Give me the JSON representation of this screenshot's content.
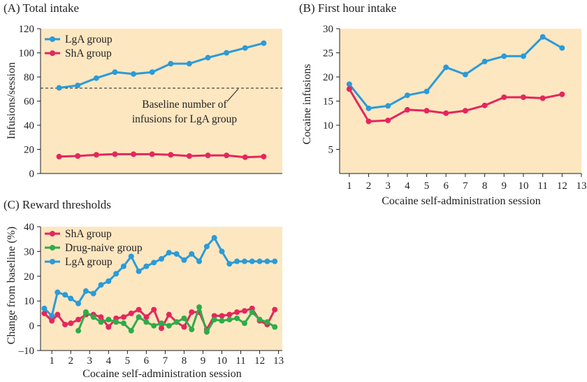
{
  "colors": {
    "panel_bg": "#fde7c1",
    "axis": "#231f20",
    "lga": "#2b9bd8",
    "sha": "#e5265c",
    "naive": "#2eac4a"
  },
  "chart_data": [
    {
      "id": "A",
      "type": "line",
      "title": "(A) Total intake",
      "xlabel": "",
      "ylabel": "Infusions/session",
      "xlim": [
        0,
        13
      ],
      "ylim": [
        0,
        120
      ],
      "yticks": [
        "0",
        "20",
        "40",
        "60",
        "80",
        "100",
        "120"
      ],
      "xticks": [],
      "legend": "top-left",
      "series": [
        {
          "name": "LgA group",
          "color_key": "lga",
          "x": [
            1,
            2,
            3,
            4,
            5,
            6,
            7,
            8,
            9,
            10,
            11,
            12
          ],
          "y": [
            71,
            73,
            79,
            84,
            82.5,
            84,
            91,
            91,
            96,
            100,
            104,
            108
          ]
        },
        {
          "name": "ShA group",
          "color_key": "sha",
          "x": [
            1,
            2,
            3,
            4,
            5,
            6,
            7,
            8,
            9,
            10,
            11,
            12
          ],
          "y": [
            14,
            14.5,
            15.5,
            16,
            16,
            16,
            15.5,
            14.5,
            15,
            15,
            13.5,
            14
          ]
        }
      ],
      "reference_line": {
        "y": 71,
        "label_line1": "Baseline number of",
        "label_line2": "infusions for LgA group"
      }
    },
    {
      "id": "B",
      "type": "line",
      "title": "(B) First hour intake",
      "xlabel": "Cocaine self-administration session",
      "ylabel": "Cocaine infusions",
      "xlim": [
        0.5,
        13
      ],
      "ylim": [
        0,
        30
      ],
      "yticks": [
        "5",
        "10",
        "15",
        "20",
        "25",
        "30"
      ],
      "xticks": [
        "1",
        "2",
        "3",
        "4",
        "5",
        "6",
        "7",
        "8",
        "9",
        "10",
        "11",
        "12",
        "13"
      ],
      "series": [
        {
          "name": "",
          "color_key": "lga",
          "x": [
            1,
            2,
            3,
            4,
            5,
            6,
            7,
            8,
            9,
            10,
            11,
            12
          ],
          "y": [
            18.5,
            13.5,
            14,
            16.2,
            17,
            22,
            20.5,
            23.2,
            24.3,
            24.3,
            28.3,
            26
          ]
        },
        {
          "name": "",
          "color_key": "sha",
          "x": [
            1,
            2,
            3,
            4,
            5,
            6,
            7,
            8,
            9,
            10,
            11,
            12
          ],
          "y": [
            17.5,
            10.8,
            11,
            13.2,
            13,
            12.5,
            13,
            14.1,
            15.8,
            15.8,
            15.6,
            16.4
          ]
        }
      ]
    },
    {
      "id": "C",
      "type": "line",
      "title": "(C) Reward thresholds",
      "xlabel": "Cocaine self-administration session",
      "ylabel": "Change from baseline (%)",
      "xlim": [
        0.4,
        13.2
      ],
      "ylim": [
        -10,
        40
      ],
      "yticks": [
        "–10",
        "0",
        "10",
        "20",
        "30",
        "40"
      ],
      "xticks": [
        "1",
        "2",
        "3",
        "4",
        "5",
        "6",
        "7",
        "8",
        "9",
        "10",
        "11",
        "12",
        "13"
      ],
      "legend": "top-left",
      "series": [
        {
          "name": "ShA group",
          "color_key": "sha",
          "x": [
            0.6,
            1,
            1.3,
            1.7,
            2,
            2.4,
            2.8,
            3.2,
            3.6,
            4,
            4.4,
            4.8,
            5.2,
            5.6,
            6,
            6.4,
            6.8,
            7.2,
            7.6,
            8,
            8.4,
            8.8,
            9.2,
            9.6,
            10,
            10.4,
            10.8,
            11.2,
            11.6,
            12,
            12.4,
            12.8
          ],
          "y": [
            5,
            2,
            4.5,
            0.5,
            1,
            2.5,
            4.5,
            4.5,
            3.5,
            -0.5,
            3,
            3.5,
            5,
            6.5,
            3.5,
            6.5,
            -1,
            4.5,
            1.5,
            -0.5,
            5.5,
            5.5,
            -1.5,
            4,
            4,
            4.5,
            5.5,
            6,
            7,
            2,
            0.5,
            6.5
          ]
        },
        {
          "name": "Drug-naive group",
          "color_key": "naive",
          "x": [
            2.4,
            2.8,
            3.2,
            3.6,
            4,
            4.4,
            4.8,
            5.2,
            5.6,
            6,
            6.4,
            6.8,
            7.2,
            7.6,
            8,
            8.4,
            8.8,
            9.2,
            9.6,
            10,
            10.4,
            10.8,
            11.2,
            11.6,
            12,
            12.4,
            12.8
          ],
          "y": [
            -2,
            5.5,
            3.5,
            1.5,
            2.5,
            1.5,
            1,
            -2,
            3.5,
            1.5,
            0,
            1,
            0,
            1.5,
            3,
            -1.5,
            7.5,
            -2.5,
            2.5,
            2,
            2.5,
            3,
            1,
            5.5,
            2.5,
            1.5,
            -0.5
          ]
        },
        {
          "name": "LgA group",
          "color_key": "lga",
          "x": [
            0.6,
            1,
            1.3,
            1.7,
            2,
            2.4,
            2.8,
            3.2,
            3.6,
            4,
            4.4,
            4.8,
            5.2,
            5.6,
            6,
            6.4,
            6.8,
            7.2,
            7.6,
            8,
            8.4,
            8.8,
            9.2,
            9.6,
            10,
            10.4,
            10.8,
            11.2,
            11.6,
            12,
            12.4,
            12.8
          ],
          "y": [
            7,
            4,
            13.5,
            12.5,
            11,
            9,
            14,
            13,
            16.5,
            18,
            21,
            24,
            28,
            22,
            24,
            25.5,
            27,
            29.5,
            29,
            26.5,
            29,
            26,
            32,
            35.5,
            30,
            25,
            26,
            26,
            26,
            26,
            26,
            26
          ]
        }
      ]
    }
  ]
}
